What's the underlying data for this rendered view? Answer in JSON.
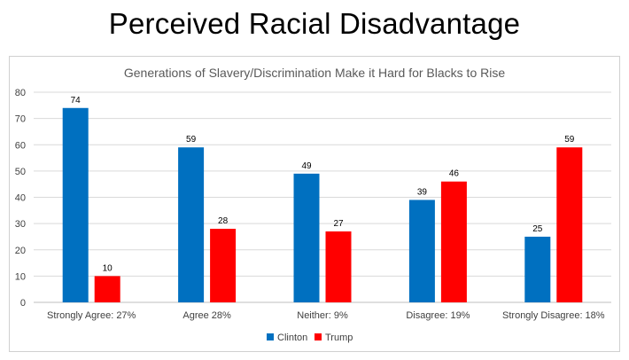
{
  "slide": {
    "title": "Perceived Racial Disadvantage"
  },
  "chart_data": {
    "type": "bar",
    "title": "Generations of Slavery/Discrimination Make it Hard for Blacks to Rise",
    "categories": [
      "Strongly Agree: 27%",
      "Agree 28%",
      "Neither: 9%",
      "Disagree: 19%",
      "Strongly Disagree: 18%"
    ],
    "series": [
      {
        "name": "Clinton",
        "values": [
          74,
          59,
          49,
          39,
          25
        ],
        "color": "#0070C0"
      },
      {
        "name": "Trump",
        "values": [
          10,
          28,
          27,
          46,
          59
        ],
        "color": "#FF0000"
      }
    ],
    "ylim": [
      0,
      80
    ],
    "yticks": [
      0,
      10,
      20,
      30,
      40,
      50,
      60,
      70,
      80
    ],
    "grid": true,
    "legend": "bottom",
    "data_labels": true,
    "xlabel": "",
    "ylabel": ""
  }
}
